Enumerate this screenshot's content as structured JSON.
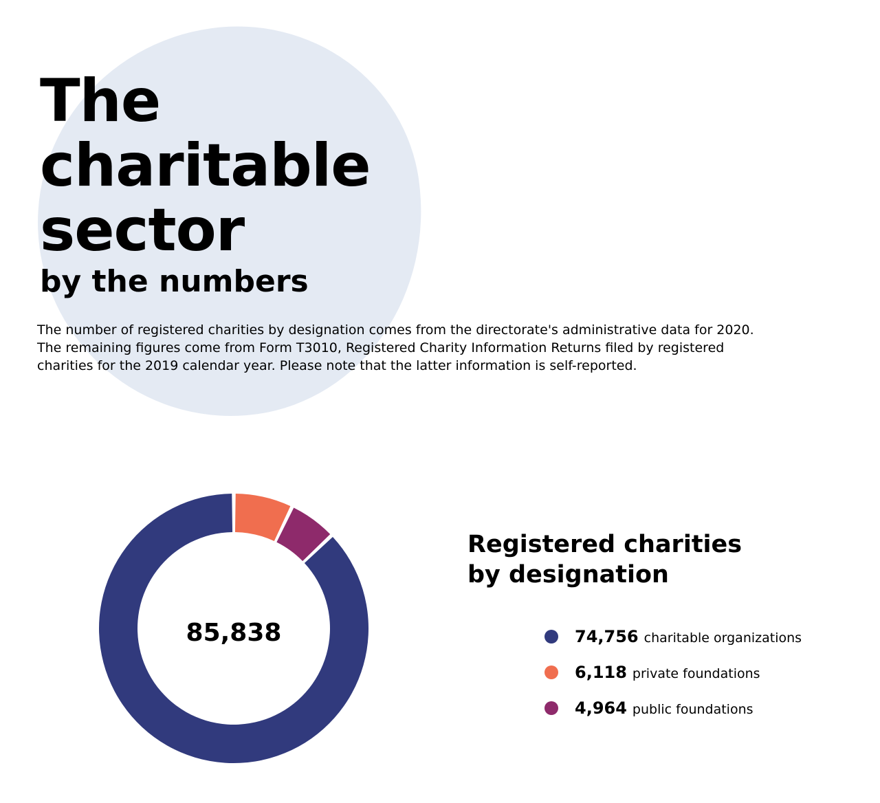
{
  "heading": {
    "line1": "The",
    "line2": "charitable",
    "line3": "sector",
    "line4": "by the numbers"
  },
  "intro": {
    "line1": "The number of registered charities by designation comes from the directorate's administrative data for 2020.",
    "line2": "The remaining figures come from Form T3010, Registered Charity Information Returns filed by registered",
    "line3": "charities for the 2019 calendar year. Please note that the latter information is self-reported."
  },
  "chart_data": {
    "type": "pie",
    "title": "Registered charities by designation",
    "title_line1": "Registered charities",
    "title_line2": "by designation",
    "center_label": "85,838",
    "total": 85838,
    "slices": [
      {
        "label": "charitable organizations",
        "value": 74756,
        "value_text": "74,756",
        "color": "#313a7d"
      },
      {
        "label": "private foundations",
        "value": 6118,
        "value_text": "6,118",
        "color": "#f06e4f"
      },
      {
        "label": "public foundations",
        "value": 4964,
        "value_text": "4,964",
        "color": "#8e2a6b"
      }
    ],
    "legend_placement": "right"
  },
  "colors": {
    "blob": "#e4eaf3",
    "text": "#000000"
  }
}
